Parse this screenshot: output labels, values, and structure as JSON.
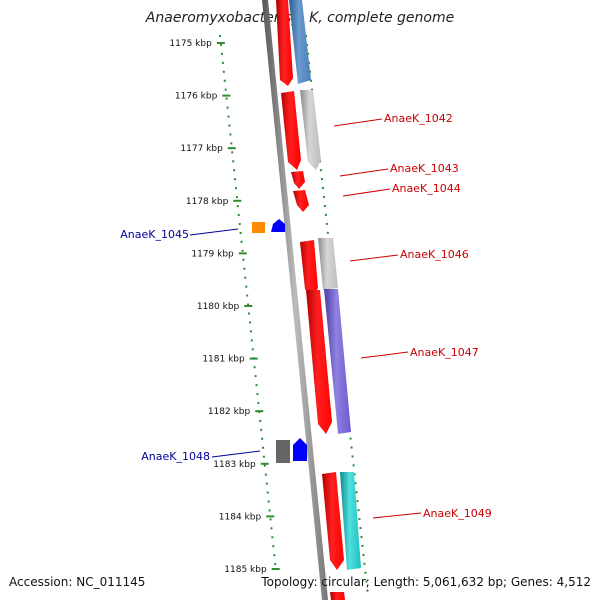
{
  "title": "Anaeromyxobacter sp. K, complete genome",
  "accession": "Accession: NC_011145",
  "stats": "Topology: circular; Length: 5,061,632 bp; Genes: 4,512",
  "ruler": {
    "ticks": [
      "1175 kbp",
      "1176 kbp",
      "1177 kbp",
      "1178 kbp",
      "1179 kbp",
      "1180 kbp",
      "1181 kbp",
      "1182 kbp",
      "1183 kbp",
      "1184 kbp",
      "1185 kbp"
    ]
  },
  "colors": {
    "ruler": "#2e8b2e",
    "axis": "#888888",
    "red": "#ff0000",
    "grey": "#bbbbbb",
    "steelblue": "#4a7fb5",
    "slateblue": "#6a5acd",
    "cyan": "#20c0c0",
    "blue": "#0000ff",
    "orange": "#ff8c00",
    "darkgrey": "#666666",
    "label_right": "#cc0000",
    "label_left": "#000099"
  },
  "genes": [
    {
      "name": "AnaeK_1042",
      "side": "right",
      "start": 1176.0,
      "end": 1176.8,
      "labeled": true
    },
    {
      "name": "AnaeK_1043",
      "side": "right",
      "start": 1176.8,
      "end": 1177.2,
      "labeled": true
    },
    {
      "name": "AnaeK_1044",
      "side": "right",
      "start": 1177.2,
      "end": 1177.6,
      "labeled": true
    },
    {
      "name": "AnaeK_1045",
      "side": "left",
      "start": 1178.4,
      "end": 1178.6,
      "labeled": true
    },
    {
      "name": "AnaeK_1046",
      "side": "right",
      "start": 1178.8,
      "end": 1179.8,
      "labeled": true
    },
    {
      "name": "AnaeK_1047",
      "side": "right",
      "start": 1179.8,
      "end": 1182.2,
      "labeled": true
    },
    {
      "name": "AnaeK_1048",
      "side": "left",
      "start": 1182.5,
      "end": 1183.0,
      "labeled": true
    },
    {
      "name": "AnaeK_1049",
      "side": "right",
      "start": 1183.2,
      "end": 1185.1,
      "labeled": true
    }
  ]
}
